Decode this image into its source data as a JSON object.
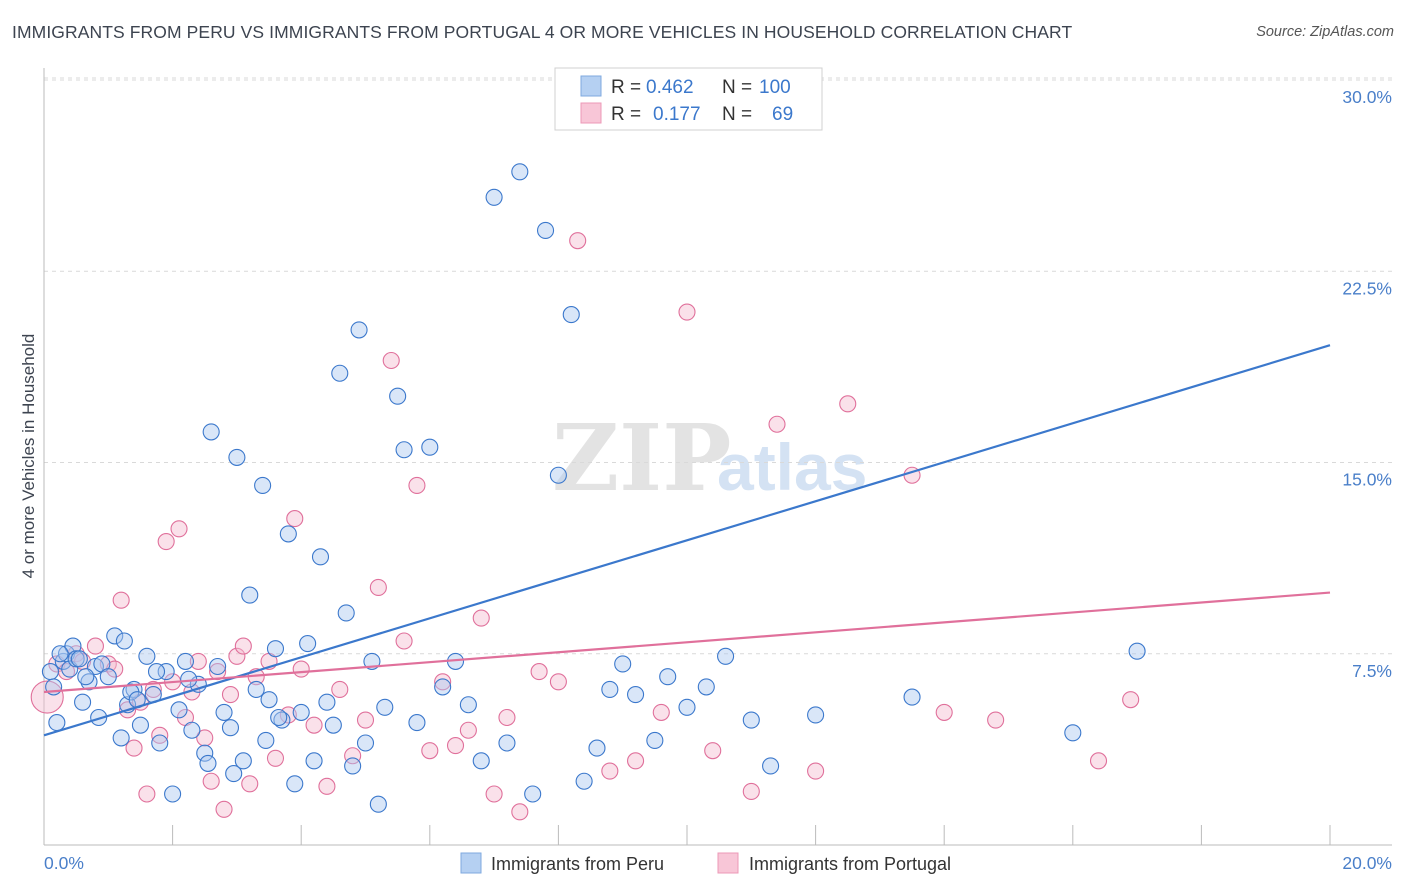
{
  "title": "IMMIGRANTS FROM PERU VS IMMIGRANTS FROM PORTUGAL 4 OR MORE VEHICLES IN HOUSEHOLD CORRELATION CHART",
  "source": "Source: ZipAtlas.com",
  "watermark": {
    "zip": "ZIP",
    "atlas": "atlas"
  },
  "colors": {
    "peru": "#3b78cc",
    "portugal": "#e0709b",
    "peru_fill": "#aac8ef",
    "portugal_fill": "#f5bcd0",
    "grid": "#d9d9d9",
    "tick_text": "#4a7fc9"
  },
  "legend": {
    "rows": [
      {
        "r_label": "R =",
        "r_value": "0.462",
        "n_label": "N =",
        "n_value": "100"
      },
      {
        "r_label": "R =",
        "r_value": "0.177",
        "n_label": "N =",
        "n_value": "69"
      }
    ]
  },
  "bottom_legend": [
    "Immigrants from Peru",
    "Immigrants from Portugal"
  ],
  "chart_data": {
    "type": "scatter",
    "title": "IMMIGRANTS FROM PERU VS IMMIGRANTS FROM PORTUGAL 4 OR MORE VEHICLES IN HOUSEHOLD CORRELATION CHART",
    "xlabel": "",
    "ylabel": "4 or more Vehicles in Household",
    "xlim": [
      0,
      20
    ],
    "ylim": [
      0,
      30
    ],
    "x_tick_labels": [
      "0.0%",
      "20.0%"
    ],
    "y_ticks": [
      7.5,
      15.0,
      22.5,
      30.0
    ],
    "y_tick_labels": [
      "7.5%",
      "15.0%",
      "22.5%",
      "30.0%"
    ],
    "grid": true,
    "legend_position": "top-center",
    "series": [
      {
        "name": "Immigrants from Peru",
        "R": 0.462,
        "N": 100,
        "trend": {
          "x": [
            0,
            20
          ],
          "y": [
            4.3,
            19.6
          ]
        },
        "x": [
          0.1,
          0.15,
          0.2,
          0.3,
          0.35,
          0.4,
          0.45,
          0.5,
          0.6,
          0.7,
          0.8,
          0.85,
          0.9,
          1.0,
          1.1,
          1.2,
          1.3,
          1.4,
          1.5,
          1.6,
          1.7,
          1.8,
          1.9,
          2.0,
          2.1,
          2.2,
          2.3,
          2.4,
          2.5,
          2.6,
          2.7,
          2.8,
          2.9,
          3.0,
          3.1,
          3.2,
          3.3,
          3.4,
          3.5,
          3.6,
          3.7,
          3.8,
          3.9,
          4.0,
          4.1,
          4.2,
          4.3,
          4.4,
          4.5,
          4.6,
          4.7,
          4.8,
          4.9,
          5.0,
          5.1,
          5.2,
          5.3,
          5.5,
          5.6,
          5.8,
          6.0,
          6.2,
          6.4,
          6.6,
          6.8,
          7.0,
          7.2,
          7.4,
          7.6,
          7.8,
          8.0,
          8.2,
          8.4,
          8.6,
          8.8,
          9.0,
          9.2,
          9.5,
          9.7,
          10.0,
          10.3,
          10.6,
          11.0,
          11.3,
          12.0,
          13.5,
          17.0,
          16.0,
          0.25,
          0.55,
          0.65,
          1.25,
          1.35,
          1.75,
          1.45,
          2.25,
          2.55,
          2.95,
          3.45,
          3.65
        ],
        "y": [
          6.8,
          6.2,
          4.8,
          7.2,
          7.5,
          6.9,
          7.8,
          7.3,
          5.6,
          6.4,
          7.0,
          5.0,
          7.1,
          6.6,
          8.2,
          4.2,
          5.5,
          6.1,
          4.7,
          7.4,
          5.9,
          4.0,
          6.8,
          2.0,
          5.3,
          7.2,
          4.5,
          6.3,
          3.6,
          16.2,
          7.0,
          5.2,
          4.6,
          15.2,
          3.3,
          9.8,
          6.1,
          14.1,
          5.7,
          7.7,
          4.9,
          12.2,
          2.4,
          5.2,
          7.9,
          3.3,
          11.3,
          5.6,
          4.7,
          18.5,
          9.1,
          3.1,
          20.2,
          4.0,
          7.2,
          1.6,
          5.4,
          17.6,
          15.5,
          4.8,
          15.6,
          6.2,
          7.2,
          5.5,
          3.3,
          25.4,
          4.0,
          26.4,
          2.0,
          24.1,
          14.5,
          20.8,
          2.5,
          3.8,
          6.1,
          7.1,
          5.9,
          4.1,
          6.6,
          5.4,
          6.2,
          7.4,
          4.9,
          3.1,
          5.1,
          5.8,
          7.6,
          4.4,
          7.5,
          7.3,
          6.6,
          8.0,
          6.0,
          6.8,
          5.7,
          6.5,
          3.2,
          2.8,
          4.1,
          5.0
        ]
      },
      {
        "name": "Immigrants from Portugal",
        "R": 0.177,
        "N": 69,
        "trend": {
          "x": [
            0,
            20
          ],
          "y": [
            6.0,
            9.9
          ]
        },
        "x": [
          0.05,
          0.2,
          0.35,
          0.5,
          0.6,
          0.8,
          1.0,
          1.1,
          1.2,
          1.3,
          1.4,
          1.5,
          1.6,
          1.7,
          1.8,
          1.9,
          2.0,
          2.1,
          2.2,
          2.3,
          2.4,
          2.5,
          2.6,
          2.7,
          2.8,
          2.9,
          3.0,
          3.1,
          3.2,
          3.3,
          3.5,
          3.6,
          3.8,
          3.9,
          4.0,
          4.2,
          4.4,
          4.6,
          4.8,
          5.0,
          5.2,
          5.4,
          5.6,
          5.8,
          6.0,
          6.2,
          6.4,
          6.6,
          6.8,
          7.0,
          7.2,
          7.4,
          7.7,
          8.0,
          8.3,
          8.8,
          9.2,
          9.6,
          10.0,
          10.4,
          11.0,
          11.4,
          12.0,
          12.5,
          13.5,
          14.0,
          14.8,
          16.4,
          16.9
        ],
        "y": [
          5.8,
          7.1,
          6.8,
          7.5,
          7.2,
          7.8,
          7.1,
          6.9,
          9.6,
          5.3,
          3.8,
          5.6,
          2.0,
          6.1,
          4.3,
          11.9,
          6.4,
          12.4,
          5.0,
          6.0,
          7.2,
          4.2,
          2.5,
          6.8,
          1.4,
          5.9,
          7.4,
          7.8,
          2.4,
          6.6,
          7.2,
          3.4,
          5.1,
          12.8,
          6.9,
          4.7,
          2.3,
          6.1,
          3.5,
          4.9,
          10.1,
          19.0,
          8.0,
          14.1,
          3.7,
          6.4,
          3.9,
          4.5,
          8.9,
          2.0,
          5.0,
          1.3,
          6.8,
          6.4,
          23.7,
          2.9,
          3.3,
          5.2,
          20.9,
          3.7,
          2.1,
          16.5,
          2.9,
          17.3,
          14.5,
          5.2,
          4.9,
          3.3,
          5.7
        ]
      }
    ]
  }
}
